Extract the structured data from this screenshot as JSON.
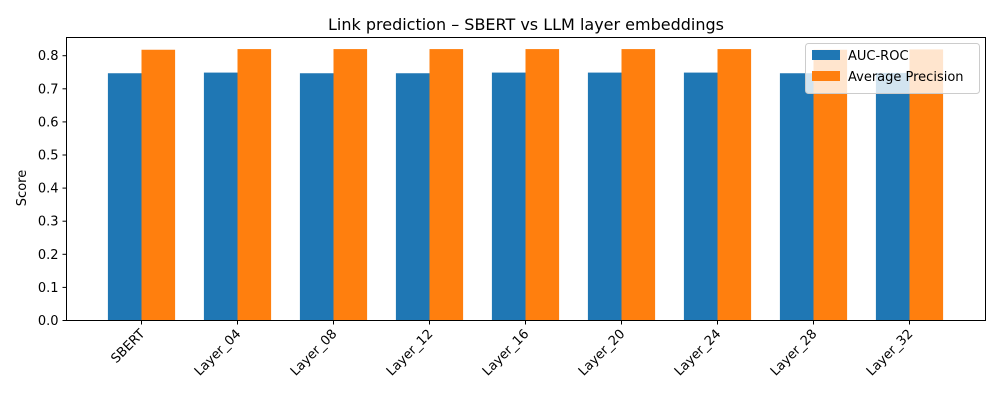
{
  "chart_data": {
    "type": "bar",
    "title": "Link prediction – SBERT vs LLM layer embeddings",
    "xlabel": "",
    "ylabel": "Score",
    "categories": [
      "SBERT",
      "Layer_04",
      "Layer_08",
      "Layer_12",
      "Layer_16",
      "Layer_20",
      "Layer_24",
      "Layer_28",
      "Layer_32"
    ],
    "series": [
      {
        "name": "AUC-ROC",
        "color": "#1f77b4",
        "values": [
          0.747,
          0.749,
          0.747,
          0.747,
          0.749,
          0.749,
          0.749,
          0.747,
          0.748
        ]
      },
      {
        "name": "Average Precision",
        "color": "#ff7f0e",
        "values": [
          0.818,
          0.82,
          0.82,
          0.82,
          0.82,
          0.82,
          0.82,
          0.818,
          0.819
        ]
      }
    ],
    "ylim": [
      0,
      0.855
    ],
    "yticks": [
      "0.0",
      "0.1",
      "0.2",
      "0.3",
      "0.4",
      "0.5",
      "0.6",
      "0.7",
      "0.8"
    ],
    "grid": false,
    "legend_position": "top-right"
  }
}
